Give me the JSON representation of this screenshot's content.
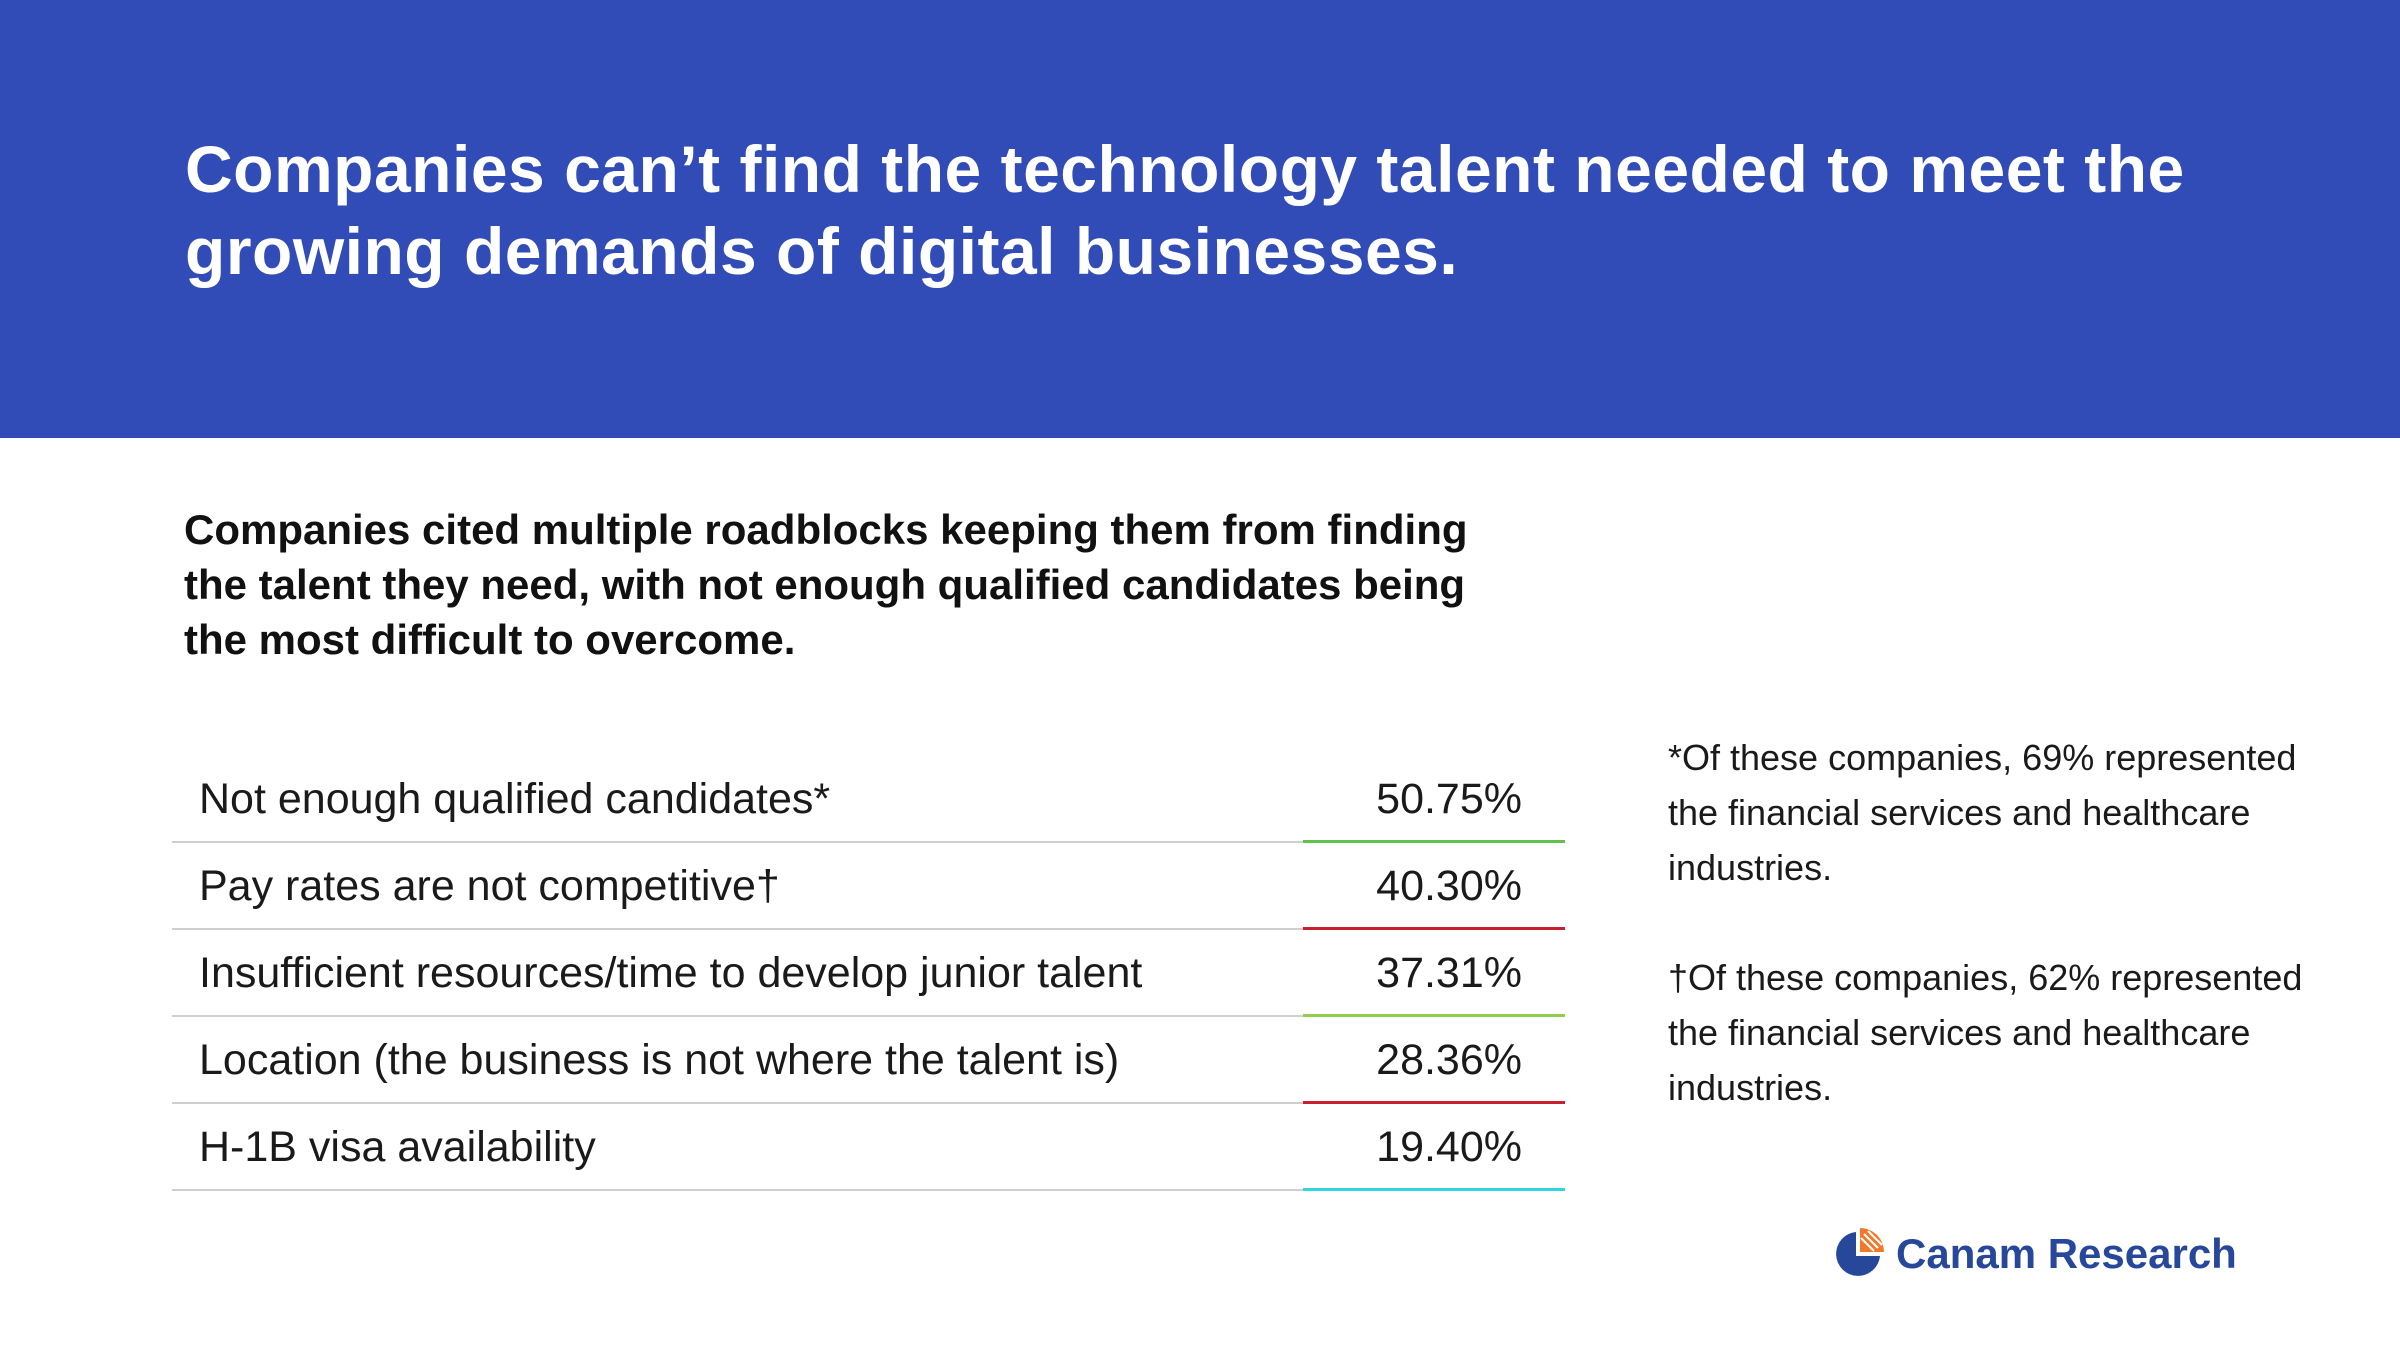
{
  "header": {
    "title": "Companies can’t find the technology talent needed to meet the growing demands of digital businesses."
  },
  "subtitle": "Companies cited multiple roadblocks keeping them from finding the talent they need, with not enough qualified candidates being the most difficult to overcome.",
  "chart_data": {
    "type": "table",
    "title": "",
    "categories": [
      "Not enough qualified candidates*",
      "Pay rates are not competitive†",
      "Insufficient resources/time to develop junior talent",
      "Location (the business is not where the talent is)",
      "H-1B visa availability"
    ],
    "values": [
      50.75,
      40.3,
      37.31,
      28.36,
      19.4
    ],
    "value_labels": [
      "50.75%",
      "40.30%",
      "37.31%",
      "28.36%",
      "19.40%"
    ],
    "accent_colors": [
      "#5fc24d",
      "#c8202e",
      "#8fce4f",
      "#c8202e",
      "#2ed6e0"
    ]
  },
  "footnotes": {
    "note1": "*Of these companies, 69% represented the financial services and healthcare industries.",
    "note2": "†Of these companies, 62% represented the financial services and healthcare industries."
  },
  "colors": {
    "header_bg": "#314cb6",
    "logo_blue": "#26479a",
    "logo_orange": "#f07a2a"
  },
  "logo": {
    "text": "Canam Research",
    "icon": "pie-chart-icon"
  }
}
